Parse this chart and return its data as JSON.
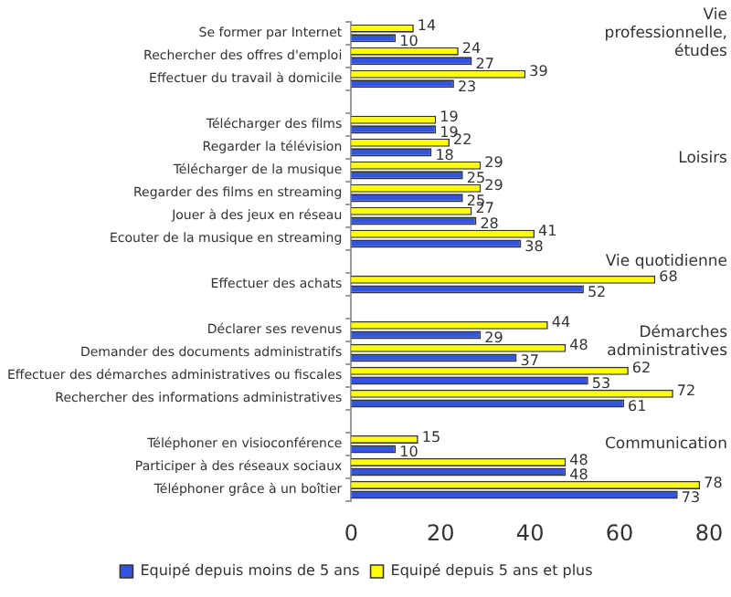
{
  "chart_data": {
    "type": "bar",
    "orientation": "horizontal",
    "categories": [
      "Se former par Internet",
      "Rechercher des offres d'emploi",
      "Effectuer du travail à domicile",
      null,
      "Télécharger des films",
      "Regarder la télévision",
      "Télécharger de la musique",
      "Regarder des films en streaming",
      "Jouer à des jeux en réseau",
      "Ecouter de la musique en streaming",
      null,
      "Effectuer des achats",
      null,
      "Déclarer ses revenus",
      "Demander des documents administratifs",
      "Effectuer des démarches administratives ou fiscales",
      "Rechercher des informations administratives",
      null,
      "Téléphoner en visioconférence",
      "Participer à des réseaux sociaux",
      "Téléphoner grâce à un boîtier"
    ],
    "series": [
      {
        "name": "Equipé depuis moins de 5 ans",
        "color": "#3355dd",
        "values": [
          10,
          27,
          23,
          null,
          19,
          18,
          25,
          25,
          28,
          38,
          null,
          52,
          null,
          29,
          37,
          53,
          61,
          null,
          10,
          48,
          73
        ]
      },
      {
        "name": "Equipé depuis 5 ans et plus",
        "color": "#ffff00",
        "values": [
          14,
          24,
          39,
          null,
          19,
          22,
          29,
          29,
          27,
          41,
          null,
          68,
          null,
          44,
          48,
          62,
          72,
          null,
          15,
          48,
          78
        ]
      }
    ],
    "xlim": [
      0,
      80
    ],
    "xticks": [
      0,
      20,
      40,
      60,
      80
    ],
    "grid": false,
    "legend": "bottom",
    "data_labels": true,
    "annotations": [
      "Vie professionnelle, études",
      "Loisirs",
      "Vie quotidienne",
      "Démarches administratives",
      "Communication"
    ]
  }
}
